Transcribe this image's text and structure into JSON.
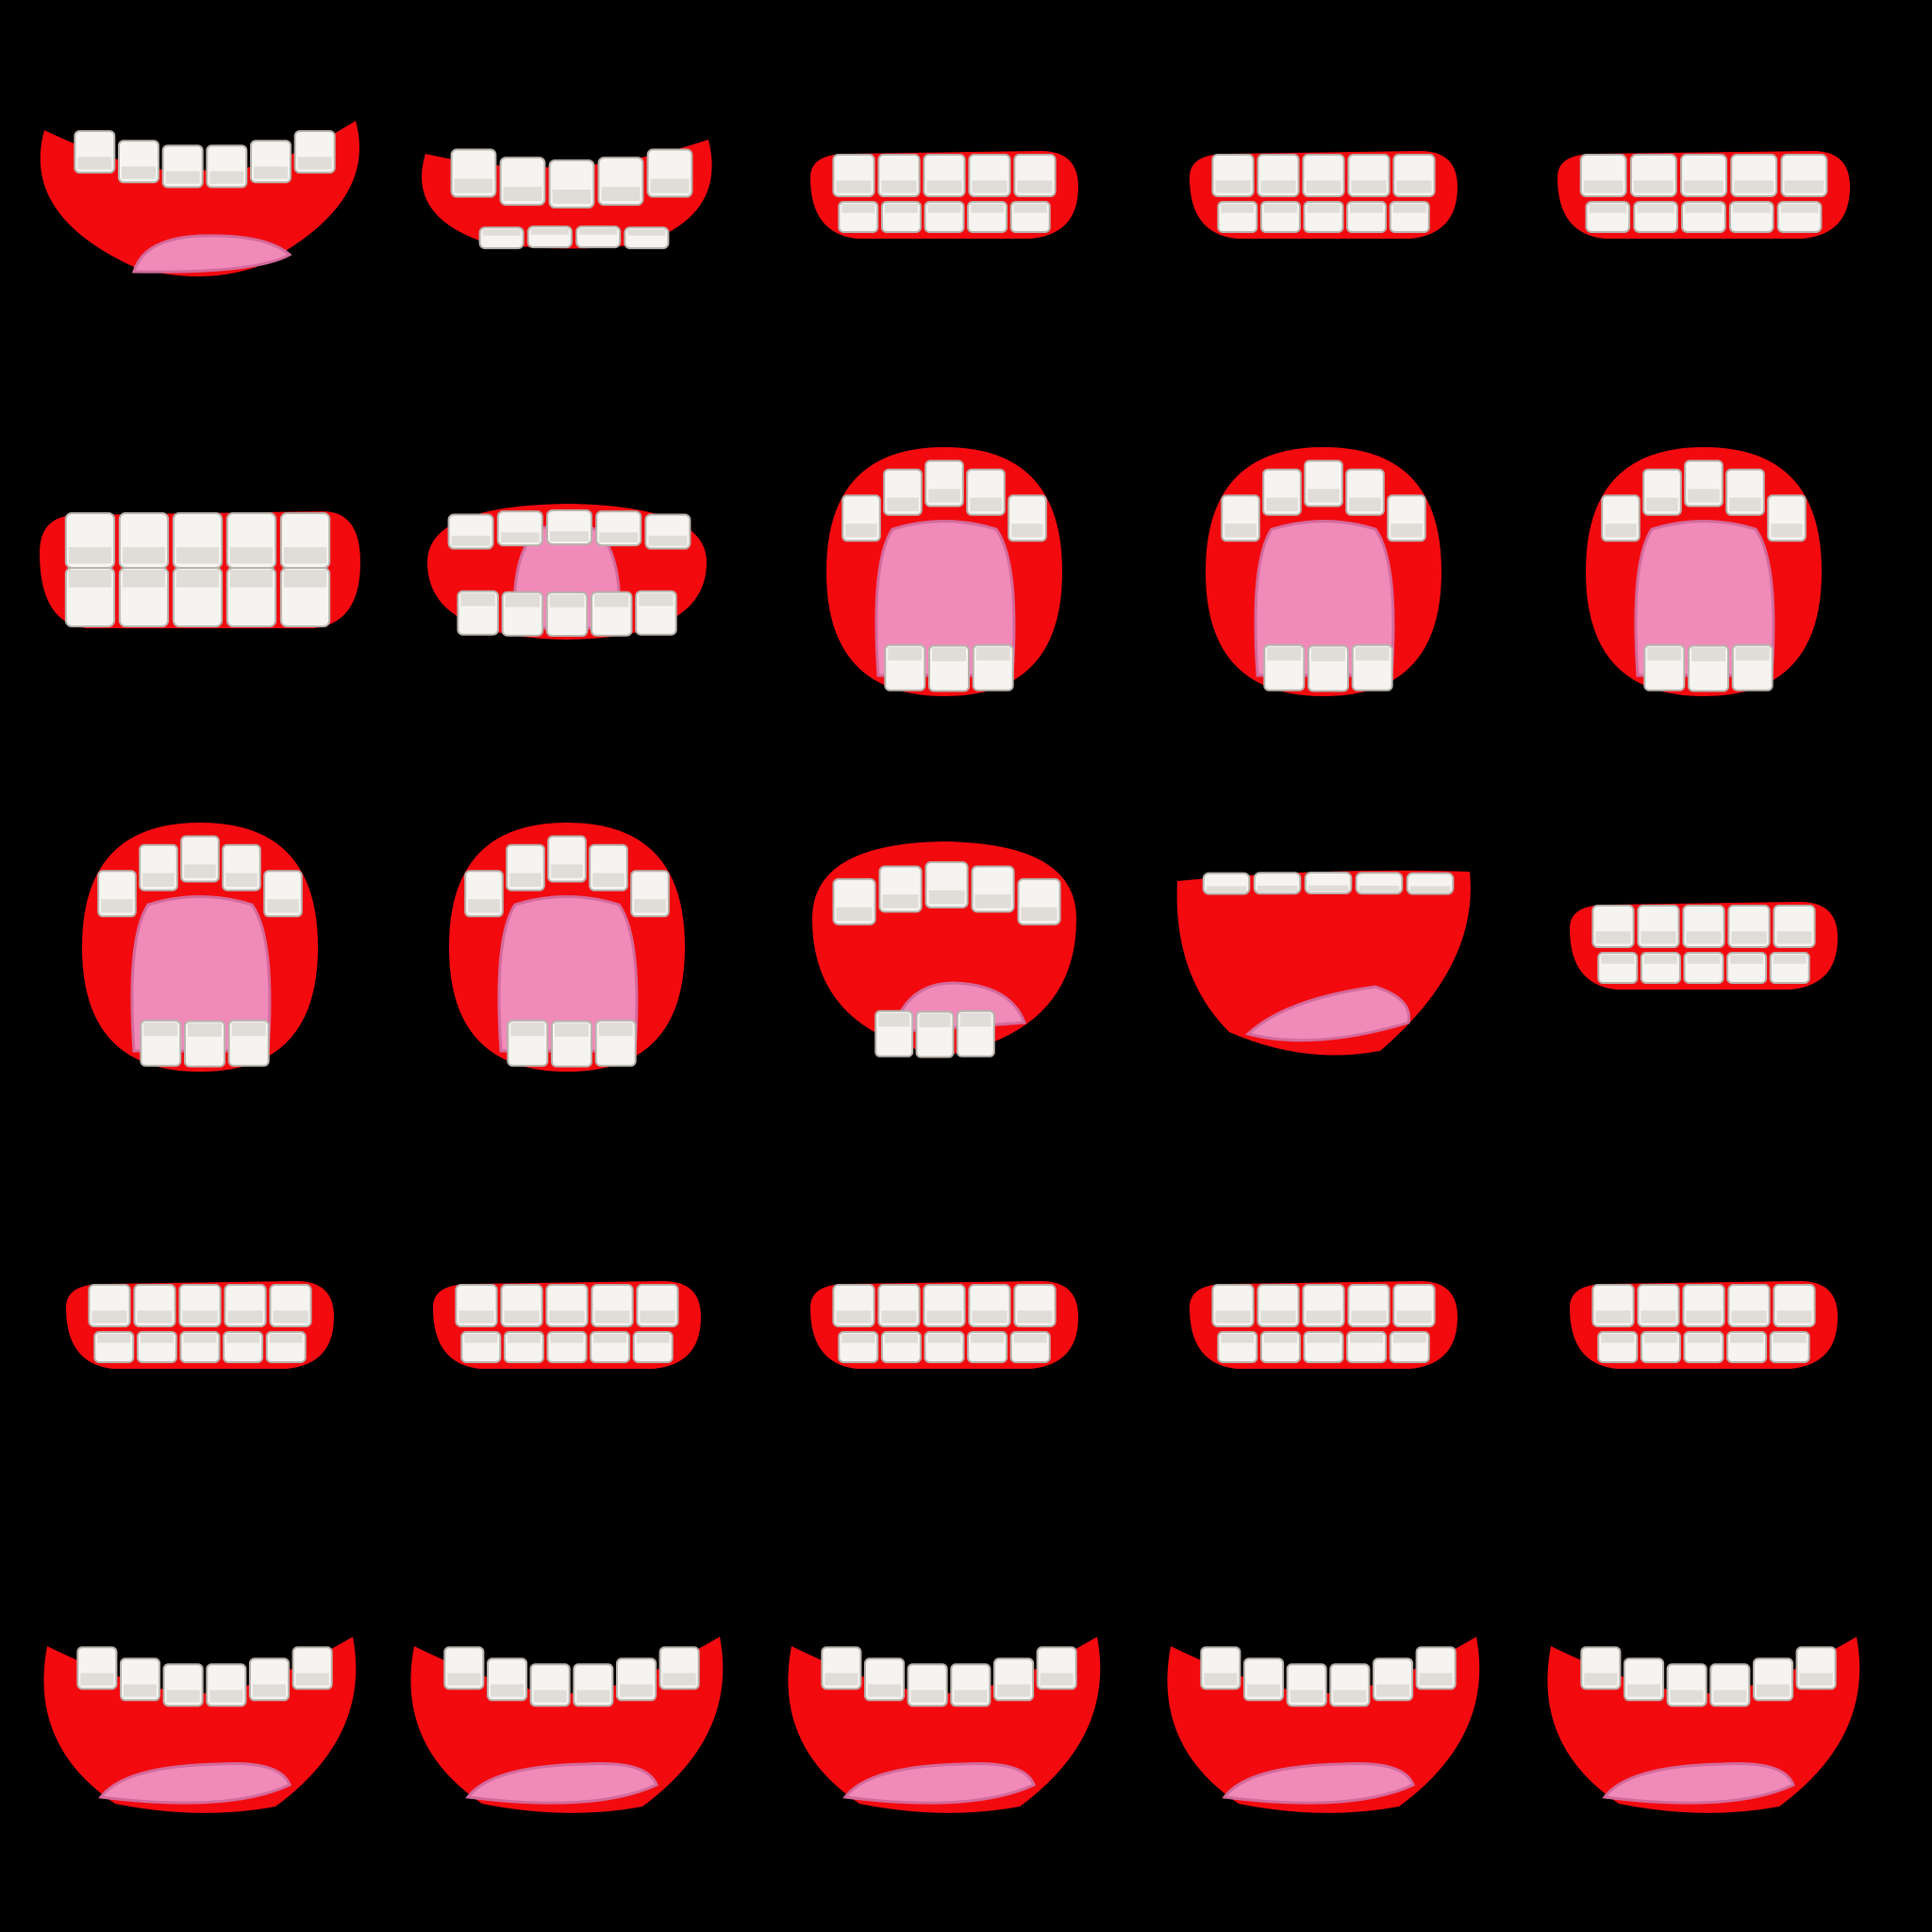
{
  "sprite_sheet": {
    "background": "#000000",
    "colors": {
      "lip": "#f20a0f",
      "tooth": "#f6f4f0",
      "tooth_shade": "#b8b2ac",
      "tongue": "#f08ab8",
      "tongue_dark": "#d46a9c"
    },
    "rows": [
      {
        "row": 1,
        "frames": [
          {
            "shape": "smile",
            "tongue": true,
            "bottom_teeth": false
          },
          {
            "shape": "smile-closed",
            "tongue": false,
            "bottom_teeth": true
          },
          {
            "shape": "closed",
            "tongue": false,
            "bottom_teeth": true
          },
          {
            "shape": "closed",
            "tongue": false,
            "bottom_teeth": true
          },
          {
            "shape": "closed-wide",
            "tongue": false,
            "bottom_teeth": true
          }
        ]
      },
      {
        "row": 2,
        "frames": [
          {
            "shape": "closed-tall",
            "tongue": false,
            "bottom_teeth": true
          },
          {
            "shape": "half-open",
            "tongue": true,
            "bottom_teeth": true
          },
          {
            "shape": "open-round",
            "tongue": true,
            "bottom_teeth": true
          },
          {
            "shape": "open-round",
            "tongue": true,
            "bottom_teeth": true
          },
          {
            "shape": "open-round",
            "tongue": true,
            "bottom_teeth": true
          }
        ]
      },
      {
        "row": 3,
        "frames": [
          {
            "shape": "open-round",
            "tongue": true,
            "bottom_teeth": true
          },
          {
            "shape": "open-round",
            "tongue": true,
            "bottom_teeth": true
          },
          {
            "shape": "open-wide",
            "tongue": true,
            "bottom_teeth": true
          },
          {
            "shape": "open-flat",
            "tongue": true,
            "bottom_teeth": false
          },
          {
            "shape": "closed",
            "tongue": false,
            "bottom_teeth": true
          }
        ]
      },
      {
        "row": 4,
        "frames": [
          {
            "shape": "closed",
            "tongue": false,
            "bottom_teeth": true
          },
          {
            "shape": "closed",
            "tongue": false,
            "bottom_teeth": true
          },
          {
            "shape": "closed",
            "tongue": false,
            "bottom_teeth": true
          },
          {
            "shape": "closed",
            "tongue": false,
            "bottom_teeth": true
          },
          {
            "shape": "closed",
            "tongue": false,
            "bottom_teeth": true
          }
        ]
      },
      {
        "row": 5,
        "frames": [
          {
            "shape": "frown",
            "tongue": true,
            "bottom_teeth": false
          },
          {
            "shape": "frown",
            "tongue": true,
            "bottom_teeth": false
          },
          {
            "shape": "frown",
            "tongue": true,
            "bottom_teeth": false
          },
          {
            "shape": "frown",
            "tongue": true,
            "bottom_teeth": false
          },
          {
            "shape": "frown",
            "tongue": true,
            "bottom_teeth": false
          }
        ]
      }
    ]
  }
}
